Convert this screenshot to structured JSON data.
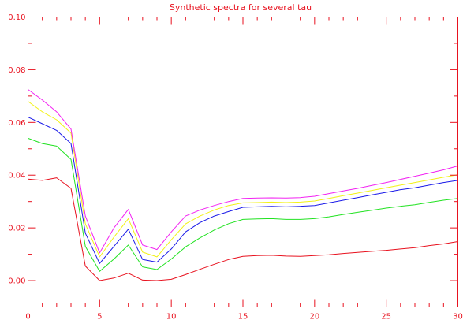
{
  "chart_data": {
    "type": "line",
    "title": "Synthetic spectra for several tau",
    "xlabel": "",
    "ylabel": "",
    "xlim": [
      0,
      30
    ],
    "ylim": [
      -0.01,
      0.1
    ],
    "x_ticks": [
      0,
      5,
      10,
      15,
      20,
      25,
      30
    ],
    "y_ticks": [
      0.0,
      0.02,
      0.04,
      0.06,
      0.08,
      0.1
    ],
    "y_tick_labels": [
      "0.00",
      "0.02",
      "0.04",
      "0.06",
      "0.08",
      "0.10"
    ],
    "grid": false,
    "axis_color": "#e8121f",
    "x": [
      0,
      1,
      2,
      3,
      4,
      5,
      6,
      7,
      8,
      9,
      10,
      11,
      12,
      13,
      14,
      15,
      16,
      17,
      18,
      19,
      20,
      21,
      22,
      23,
      24,
      25,
      26,
      27,
      28,
      29,
      30
    ],
    "series": [
      {
        "color": "#e8121f",
        "values": [
          0.0385,
          0.038,
          0.039,
          0.035,
          0.0055,
          0.0,
          0.001,
          0.0028,
          0.0002,
          0.0,
          0.0005,
          0.0023,
          0.0043,
          0.0062,
          0.008,
          0.0092,
          0.0095,
          0.0096,
          0.0093,
          0.0092,
          0.0095,
          0.0098,
          0.0103,
          0.0107,
          0.0111,
          0.0115,
          0.012,
          0.0125,
          0.0133,
          0.0139,
          0.0148
        ]
      },
      {
        "color": "#22e222",
        "values": [
          0.054,
          0.052,
          0.051,
          0.046,
          0.013,
          0.0035,
          0.0082,
          0.0135,
          0.0052,
          0.0042,
          0.0082,
          0.0128,
          0.0162,
          0.0192,
          0.0216,
          0.0232,
          0.0234,
          0.0235,
          0.0232,
          0.0232,
          0.0235,
          0.0242,
          0.0251,
          0.0259,
          0.0267,
          0.0275,
          0.0282,
          0.0288,
          0.0297,
          0.0305,
          0.0312
        ]
      },
      {
        "color": "#1a1ae8",
        "values": [
          0.062,
          0.0595,
          0.057,
          0.052,
          0.018,
          0.0065,
          0.013,
          0.0195,
          0.008,
          0.007,
          0.012,
          0.0185,
          0.022,
          0.0245,
          0.0262,
          0.0278,
          0.028,
          0.0282,
          0.028,
          0.0282,
          0.0285,
          0.0295,
          0.0305,
          0.0315,
          0.0325,
          0.0335,
          0.0345,
          0.0352,
          0.0362,
          0.0372,
          0.038
        ]
      },
      {
        "color": "#f2f214",
        "values": [
          0.068,
          0.064,
          0.061,
          0.056,
          0.0215,
          0.009,
          0.0165,
          0.0235,
          0.0108,
          0.009,
          0.0155,
          0.0215,
          0.0245,
          0.0268,
          0.0285,
          0.0295,
          0.0296,
          0.0298,
          0.0296,
          0.0298,
          0.0302,
          0.0312,
          0.0322,
          0.0332,
          0.0342,
          0.0352,
          0.0362,
          0.0372,
          0.0382,
          0.0392,
          0.0402
        ]
      },
      {
        "color": "#f222f2",
        "values": [
          0.0725,
          0.0685,
          0.064,
          0.0575,
          0.0245,
          0.0105,
          0.02,
          0.027,
          0.0135,
          0.0118,
          0.0185,
          0.0245,
          0.0268,
          0.0285,
          0.03,
          0.0312,
          0.0313,
          0.0314,
          0.0313,
          0.0315,
          0.032,
          0.033,
          0.034,
          0.035,
          0.0361,
          0.0372,
          0.0384,
          0.0396,
          0.0408,
          0.042,
          0.0435
        ]
      }
    ]
  }
}
